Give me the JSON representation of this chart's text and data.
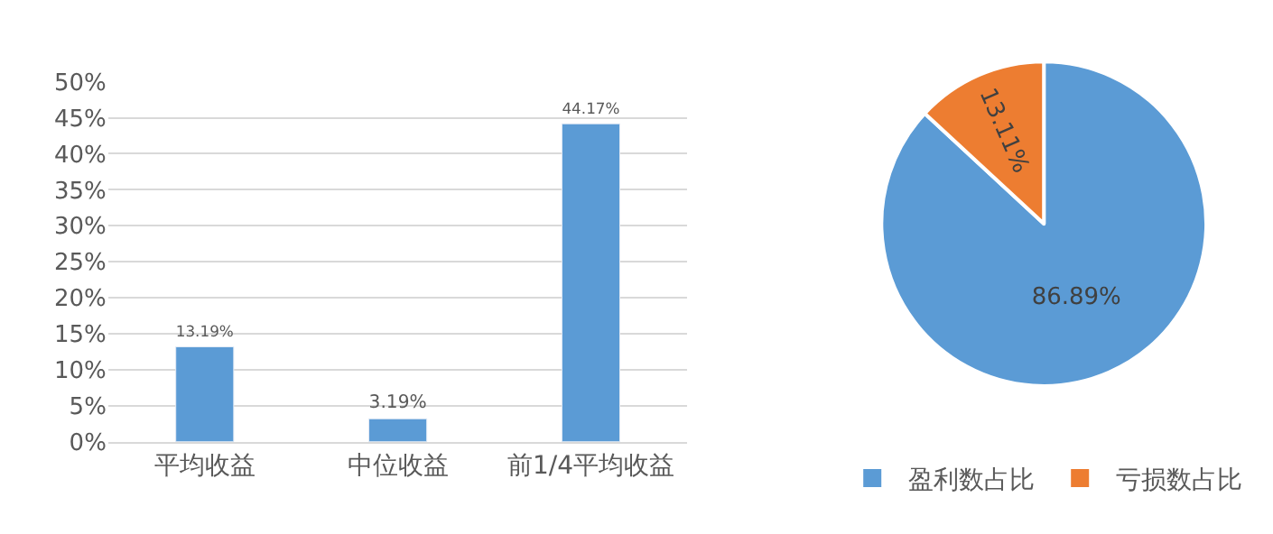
{
  "chart_data": [
    {
      "type": "bar",
      "categories": [
        "平均收益",
        "中位收益",
        "前1/4平均收益"
      ],
      "values": [
        13.19,
        3.19,
        44.17
      ],
      "color": "#5b9bd5",
      "value_labels": [
        "13.19%",
        "3.19%",
        "44.17%"
      ],
      "ylim": [
        0,
        50
      ],
      "yticks": [
        {
          "value": 0,
          "label": "0%"
        },
        {
          "value": 5,
          "label": "5%"
        },
        {
          "value": 10,
          "label": "10%"
        },
        {
          "value": 15,
          "label": "15%"
        },
        {
          "value": 20,
          "label": "20%"
        },
        {
          "value": 25,
          "label": "25%"
        },
        {
          "value": 30,
          "label": "30%"
        },
        {
          "value": 35,
          "label": "35%"
        },
        {
          "value": 40,
          "label": "40%"
        },
        {
          "value": 45,
          "label": "45%"
        },
        {
          "value": 50,
          "label": "50%"
        }
      ],
      "grid": "y",
      "legend": false
    },
    {
      "type": "pie",
      "categories": [
        "盈利数占比",
        "亏损数占比"
      ],
      "values": [
        86.89,
        13.11
      ],
      "colors": [
        "#5b9bd5",
        "#ed7d31"
      ],
      "value_labels": [
        "86.89%",
        "13.11%"
      ],
      "legend": "bottom"
    }
  ]
}
